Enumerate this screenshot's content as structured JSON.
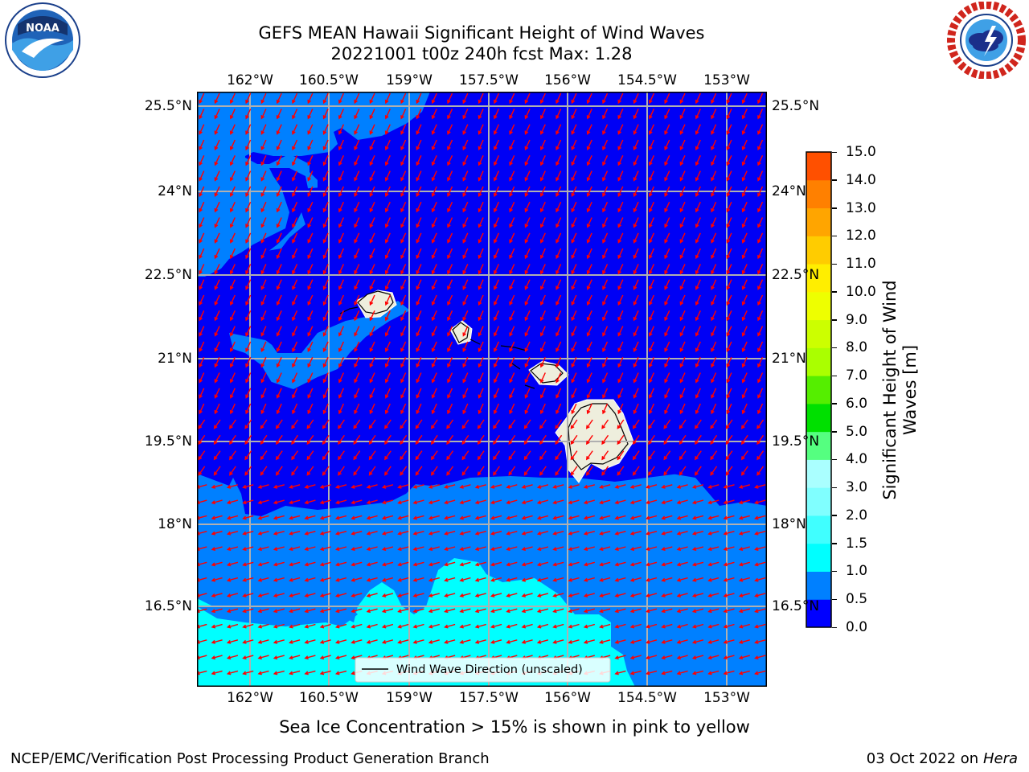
{
  "title": {
    "line1": "GEFS MEAN Hawaii Significant Height of Wind Waves",
    "line2": "20221001 t00z 240h fcst   Max: 1.28"
  },
  "logos": {
    "left_icon": "noaa-logo",
    "left_text": "NOAA",
    "right_icon": "nws-logo",
    "right_text": "NATIONAL WEATHER SERVICE"
  },
  "map": {
    "lon_labels": [
      "162°W",
      "160.5°W",
      "159°W",
      "157.5°W",
      "156°W",
      "154.5°W",
      "153°W"
    ],
    "lat_labels": [
      "25.5°N",
      "24°N",
      "22.5°N",
      "21°N",
      "19.5°N",
      "18°N",
      "16.5°N"
    ],
    "legend_label": "Wind Wave Direction (unscaled)",
    "ocean_color": "#0000f5",
    "land_color": "#eeeedd",
    "arrow_color": "#ff0000"
  },
  "colorbar": {
    "label_line1": "Significant Height of Wind",
    "label_line2": "Waves [m]",
    "ticks": [
      "0.0",
      "0.5",
      "1.0",
      "1.5",
      "2.0",
      "3.0",
      "4.0",
      "5.0",
      "6.0",
      "7.0",
      "8.0",
      "9.0",
      "10.0",
      "11.0",
      "12.0",
      "13.0",
      "14.0",
      "15.0"
    ],
    "colors": [
      "#0000ff",
      "#0080ff",
      "#00ffff",
      "#40ffff",
      "#80ffff",
      "#aaffff",
      "#55ff80",
      "#00e000",
      "#55ee00",
      "#aaff00",
      "#ccff00",
      "#eeff00",
      "#ffee00",
      "#ffcc00",
      "#ffa500",
      "#ff8000",
      "#ff5000",
      "#ff2000",
      "#ff0000"
    ]
  },
  "footer": {
    "sea_ice_note": "Sea Ice Concentration > 15% is shown in pink to yellow",
    "left": "NCEP/EMC/Verification Post Processing Product Generation Branch",
    "right_prefix": "03 Oct 2022 on ",
    "right_machine": "Hera"
  }
}
